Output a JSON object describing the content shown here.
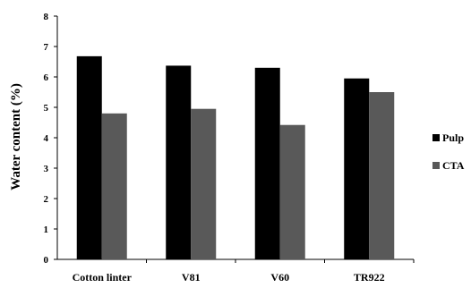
{
  "chart_data": {
    "type": "bar",
    "categories": [
      "Cotton linter",
      "V81",
      "V60",
      "TR922"
    ],
    "series": [
      {
        "name": "Pulp",
        "values": [
          6.68,
          6.37,
          6.3,
          5.95
        ],
        "color": "#000000"
      },
      {
        "name": "CTA",
        "values": [
          4.8,
          4.95,
          4.42,
          5.5
        ],
        "color": "#595959"
      }
    ],
    "ylabel": "Water content (%)",
    "xlabel": "",
    "ylim": [
      0,
      8
    ],
    "yticks": [
      "0",
      "1",
      "2",
      "3",
      "4",
      "5",
      "6",
      "7",
      "8"
    ],
    "legend_position": "right",
    "grid": false
  }
}
